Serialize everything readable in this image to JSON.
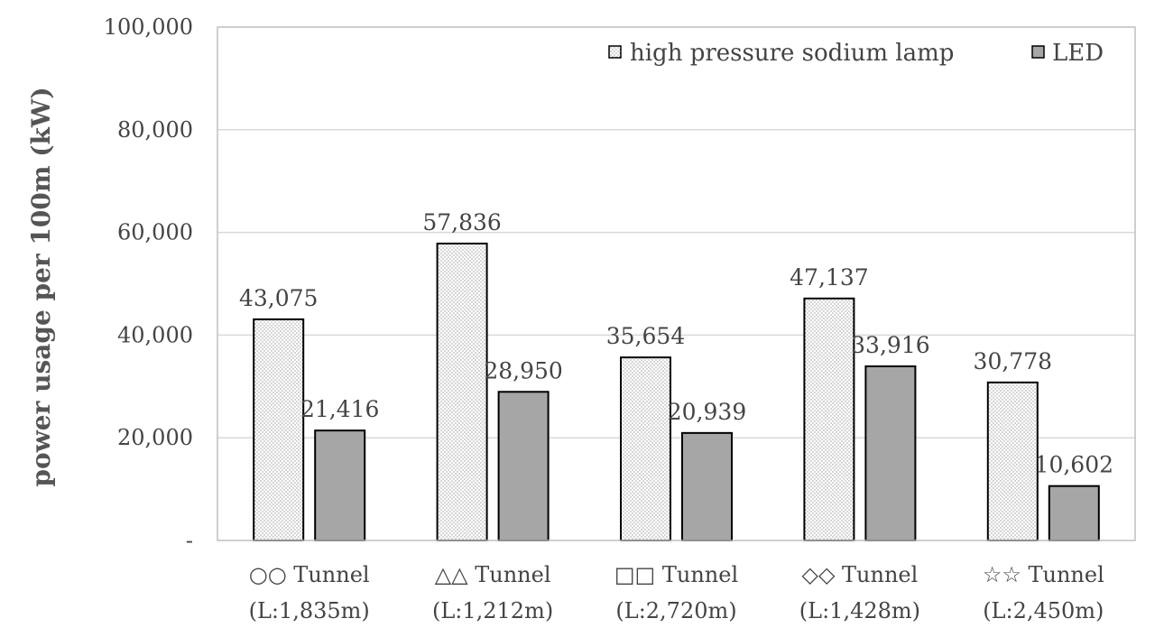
{
  "chart_data": {
    "type": "bar",
    "ylabel": "power usage per 100m (kW)",
    "ylim": [
      0,
      100000
    ],
    "yticks": [
      "-",
      "20,000",
      "40,000",
      "60,000",
      "80,000",
      "100,000"
    ],
    "ytick_values": [
      0,
      20000,
      40000,
      60000,
      80000,
      100000
    ],
    "grid": "horizontal",
    "legend_position": "top-right",
    "categories": [
      [
        "○○ Tunnel",
        "(L:1,835m)"
      ],
      [
        "△△ Tunnel",
        "(L:1,212m)"
      ],
      [
        "□□ Tunnel",
        "(L:2,720m)"
      ],
      [
        "◇◇ Tunnel",
        "(L:1,428m)"
      ],
      [
        "☆☆ Tunnel",
        "(L:2,450m)"
      ]
    ],
    "series": [
      {
        "name": "high pressure sodium lamp",
        "values": [
          43075,
          57836,
          35654,
          47137,
          30778
        ],
        "labels": [
          "43,075",
          "57,836",
          "35,654",
          "47,137",
          "30,778"
        ],
        "fill": "dotted",
        "color": "#ffffff"
      },
      {
        "name": "LED",
        "values": [
          21416,
          28950,
          20939,
          33916,
          10602
        ],
        "labels": [
          "21,416",
          "28,950",
          "20,939",
          "33,916",
          "10,602"
        ],
        "fill": "solid",
        "color": "#a6a6a6"
      }
    ]
  }
}
